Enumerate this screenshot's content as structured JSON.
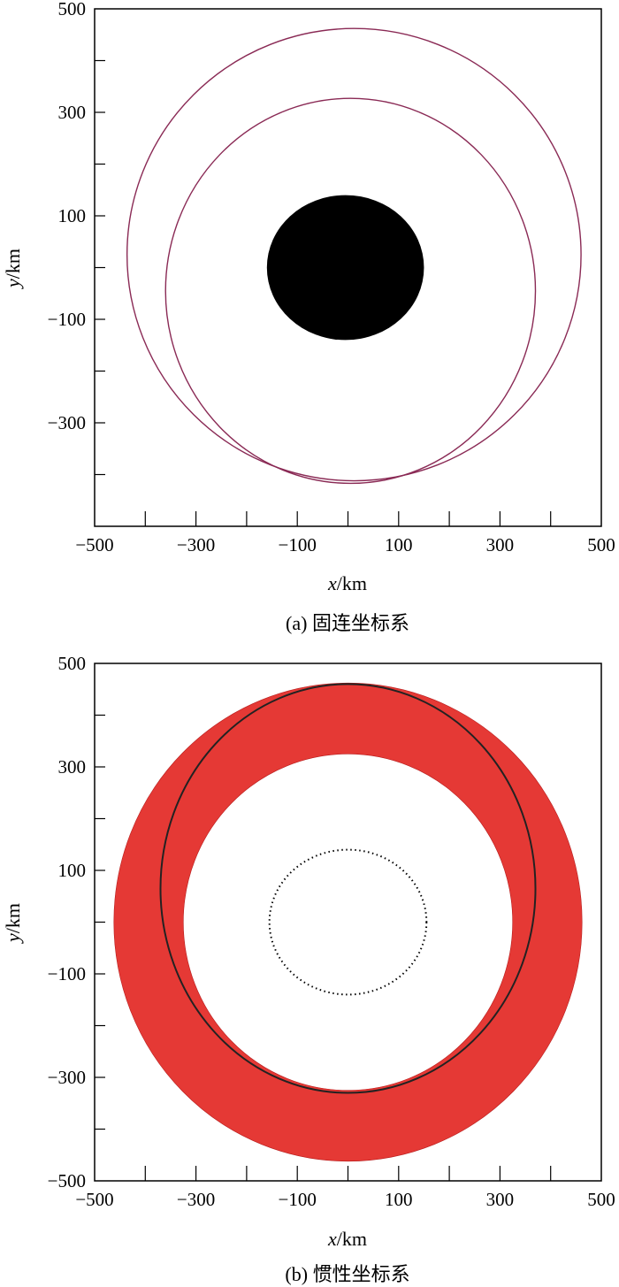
{
  "chart_data": [
    {
      "type": "line",
      "caption": "(a) 固连坐标系",
      "xlabel_var": "x",
      "xlabel_unit": "/km",
      "ylabel_var": "y",
      "ylabel_unit": "/km",
      "xlim": [
        -500,
        500
      ],
      "ylim": [
        -500,
        500
      ],
      "xticks_labeled": [
        -500,
        -300,
        -100,
        100,
        300,
        500
      ],
      "yticks_labeled": [
        -300,
        -100,
        100,
        300,
        500
      ],
      "grid": false,
      "body": {
        "shape": "filled-ellipse",
        "color": "#000000",
        "cx": -5,
        "cy": 0,
        "rx": 155,
        "ry": 140
      },
      "orbits": [
        {
          "shape": "ellipse",
          "color": "#8a2a55",
          "cx": 12,
          "cy": 25,
          "rx": 448,
          "ry": 437
        },
        {
          "shape": "ellipse",
          "color": "#8a2a55",
          "cx": 5,
          "cy": -45,
          "rx": 365,
          "ry": 372
        }
      ]
    },
    {
      "type": "line",
      "caption": "(b) 惯性坐标系",
      "xlabel_var": "x",
      "xlabel_unit": "/km",
      "ylabel_var": "y",
      "ylabel_unit": "/km",
      "xlim": [
        -500,
        500
      ],
      "ylim": [
        -500,
        500
      ],
      "xticks_labeled": [
        -500,
        -300,
        -100,
        100,
        300,
        500
      ],
      "yticks_labeled": [
        -500,
        -300,
        -100,
        100,
        300,
        500
      ],
      "grid": false,
      "band": {
        "color": "#e53935",
        "cx": 0,
        "cy": 0,
        "r_outer": 462,
        "r_inner": 325
      },
      "orbit": {
        "shape": "ellipse",
        "color": "#222222",
        "cx": 0,
        "cy": 65,
        "rx": 370,
        "ry": 395
      },
      "body_outline": {
        "shape": "dotted-ellipse",
        "color": "#000000",
        "cx": 0,
        "cy": 0,
        "rx": 155,
        "ry": 140
      }
    }
  ]
}
